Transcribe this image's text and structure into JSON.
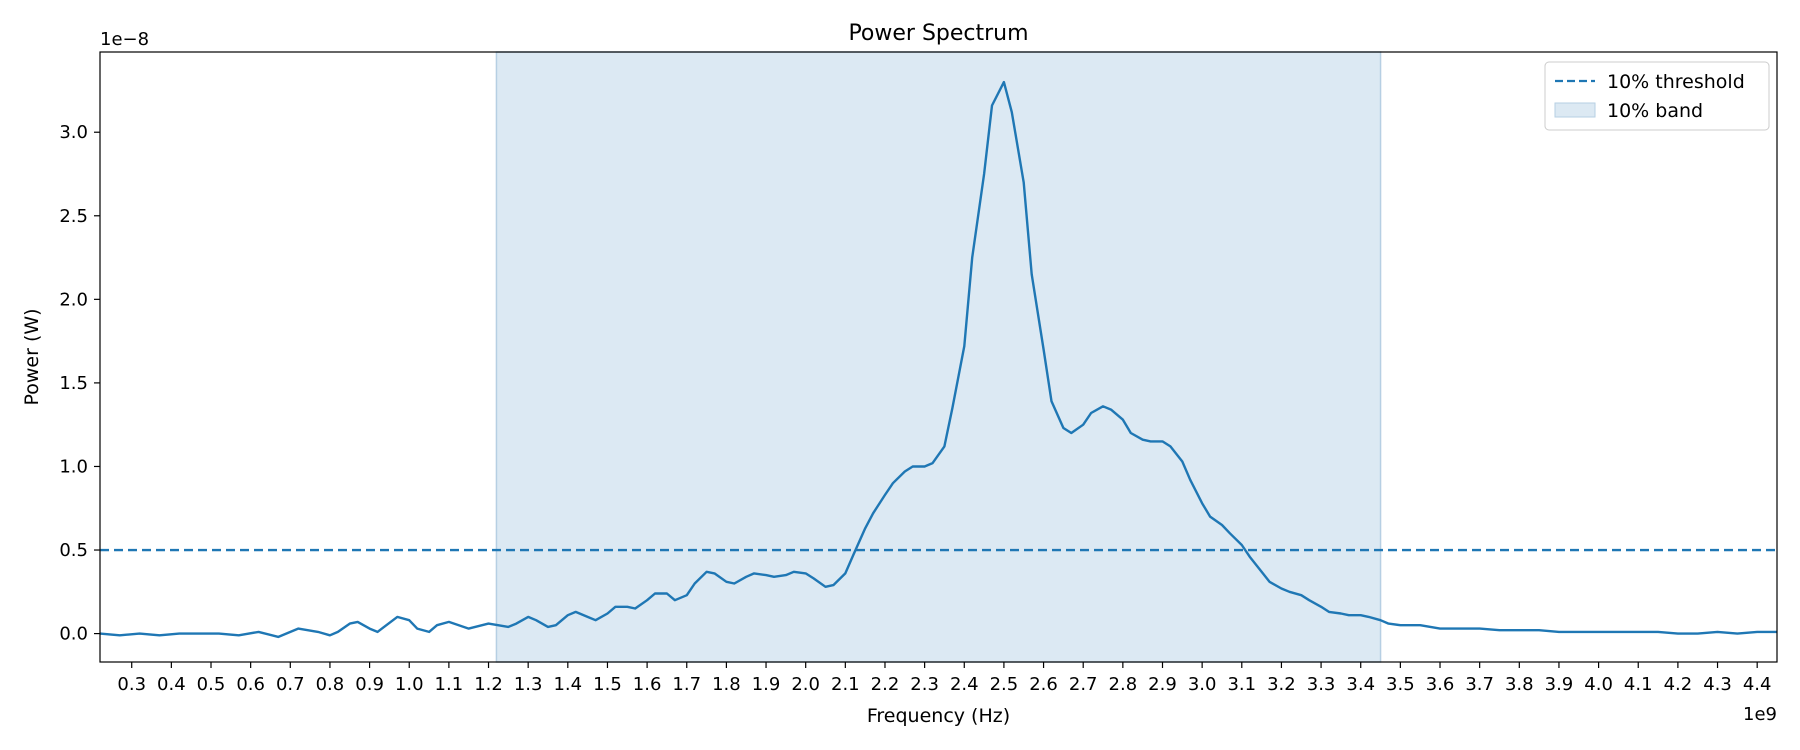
{
  "chart_data": {
    "type": "line",
    "title": "Power Spectrum",
    "xlabel": "Frequency (Hz)",
    "ylabel": "Power (W)",
    "x_offset_label": "1e9",
    "y_offset_label": "1e−8",
    "x_scale": 1000000000.0,
    "y_scale": 1e-08,
    "xlim": [
      0.22,
      4.45
    ],
    "ylim": [
      -0.17,
      3.48
    ],
    "xticks": [
      0.3,
      0.4,
      0.5,
      0.6,
      0.7,
      0.8,
      0.9,
      1.0,
      1.1,
      1.2,
      1.3,
      1.4,
      1.5,
      1.6,
      1.7,
      1.8,
      1.9,
      2.0,
      2.1,
      2.2,
      2.3,
      2.4,
      2.5,
      2.6,
      2.7,
      2.8,
      2.9,
      3.0,
      3.1,
      3.2,
      3.3,
      3.4,
      3.5,
      3.6,
      3.7,
      3.8,
      3.9,
      4.0,
      4.1,
      4.2,
      4.3,
      4.4
    ],
    "xtick_labels": [
      "0.3",
      "0.4",
      "0.5",
      "0.6",
      "0.7",
      "0.8",
      "0.9",
      "1.0",
      "1.1",
      "1.2",
      "1.3",
      "1.4",
      "1.5",
      "1.6",
      "1.7",
      "1.8",
      "1.9",
      "2.0",
      "2.1",
      "2.2",
      "2.3",
      "2.4",
      "2.5",
      "2.6",
      "2.7",
      "2.8",
      "2.9",
      "3.0",
      "3.1",
      "3.2",
      "3.3",
      "3.4",
      "3.5",
      "3.6",
      "3.7",
      "3.8",
      "3.9",
      "4.0",
      "4.1",
      "4.2",
      "4.3",
      "4.4"
    ],
    "yticks": [
      0.0,
      0.5,
      1.0,
      1.5,
      2.0,
      2.5,
      3.0
    ],
    "ytick_labels": [
      "0.0",
      "0.5",
      "1.0",
      "1.5",
      "2.0",
      "2.5",
      "3.0"
    ],
    "grid": false,
    "legend_position": "top-right",
    "color": "#1f77b4",
    "band_color": "#dce9f3",
    "series": [
      {
        "name": "",
        "style": "solid",
        "x": [
          0.22,
          0.27,
          0.32,
          0.37,
          0.42,
          0.47,
          0.52,
          0.57,
          0.62,
          0.67,
          0.72,
          0.77,
          0.8,
          0.82,
          0.85,
          0.87,
          0.9,
          0.92,
          0.97,
          1.0,
          1.02,
          1.05,
          1.07,
          1.1,
          1.15,
          1.2,
          1.25,
          1.27,
          1.3,
          1.32,
          1.35,
          1.37,
          1.4,
          1.42,
          1.45,
          1.47,
          1.5,
          1.52,
          1.55,
          1.57,
          1.6,
          1.62,
          1.65,
          1.67,
          1.7,
          1.72,
          1.75,
          1.77,
          1.8,
          1.82,
          1.85,
          1.87,
          1.9,
          1.92,
          1.95,
          1.97,
          2.0,
          2.02,
          2.05,
          2.07,
          2.1,
          2.12,
          2.15,
          2.17,
          2.2,
          2.22,
          2.25,
          2.27,
          2.3,
          2.32,
          2.35,
          2.37,
          2.4,
          2.42,
          2.45,
          2.47,
          2.5,
          2.52,
          2.55,
          2.57,
          2.6,
          2.62,
          2.65,
          2.67,
          2.7,
          2.72,
          2.75,
          2.77,
          2.8,
          2.82,
          2.85,
          2.87,
          2.9,
          2.92,
          2.95,
          2.97,
          3.0,
          3.02,
          3.05,
          3.07,
          3.1,
          3.12,
          3.15,
          3.17,
          3.2,
          3.22,
          3.25,
          3.27,
          3.3,
          3.32,
          3.35,
          3.37,
          3.4,
          3.42,
          3.45,
          3.47,
          3.5,
          3.55,
          3.6,
          3.65,
          3.7,
          3.75,
          3.8,
          3.85,
          3.9,
          3.95,
          4.0,
          4.05,
          4.1,
          4.15,
          4.2,
          4.25,
          4.3,
          4.35,
          4.4,
          4.45
        ],
        "y": [
          0.0,
          -0.01,
          0.0,
          -0.01,
          0.0,
          0.0,
          0.0,
          -0.01,
          0.01,
          -0.02,
          0.03,
          0.01,
          -0.01,
          0.01,
          0.06,
          0.07,
          0.03,
          0.01,
          0.1,
          0.08,
          0.03,
          0.01,
          0.05,
          0.07,
          0.03,
          0.06,
          0.04,
          0.06,
          0.1,
          0.08,
          0.04,
          0.05,
          0.11,
          0.13,
          0.1,
          0.08,
          0.12,
          0.16,
          0.16,
          0.15,
          0.2,
          0.24,
          0.24,
          0.2,
          0.23,
          0.3,
          0.37,
          0.36,
          0.31,
          0.3,
          0.34,
          0.36,
          0.35,
          0.34,
          0.35,
          0.37,
          0.36,
          0.33,
          0.28,
          0.29,
          0.36,
          0.47,
          0.63,
          0.72,
          0.83,
          0.9,
          0.97,
          1.0,
          1.0,
          1.02,
          1.12,
          1.35,
          1.72,
          2.25,
          2.75,
          3.16,
          3.3,
          3.12,
          2.7,
          2.15,
          1.7,
          1.39,
          1.23,
          1.2,
          1.25,
          1.32,
          1.36,
          1.34,
          1.28,
          1.2,
          1.16,
          1.15,
          1.15,
          1.12,
          1.03,
          0.92,
          0.78,
          0.7,
          0.65,
          0.6,
          0.53,
          0.46,
          0.37,
          0.31,
          0.27,
          0.25,
          0.23,
          0.2,
          0.16,
          0.13,
          0.12,
          0.11,
          0.11,
          0.1,
          0.08,
          0.06,
          0.05,
          0.05,
          0.03,
          0.03,
          0.03,
          0.02,
          0.02,
          0.02,
          0.01,
          0.01,
          0.01,
          0.01,
          0.01,
          0.01,
          0.0,
          0.0,
          0.01,
          0.0,
          0.01,
          0.01
        ]
      },
      {
        "name": "10% threshold",
        "style": "dashed",
        "y_value": 0.5
      },
      {
        "name": "10% band",
        "style": "band",
        "x_range": [
          1.22,
          3.45
        ]
      }
    ]
  }
}
